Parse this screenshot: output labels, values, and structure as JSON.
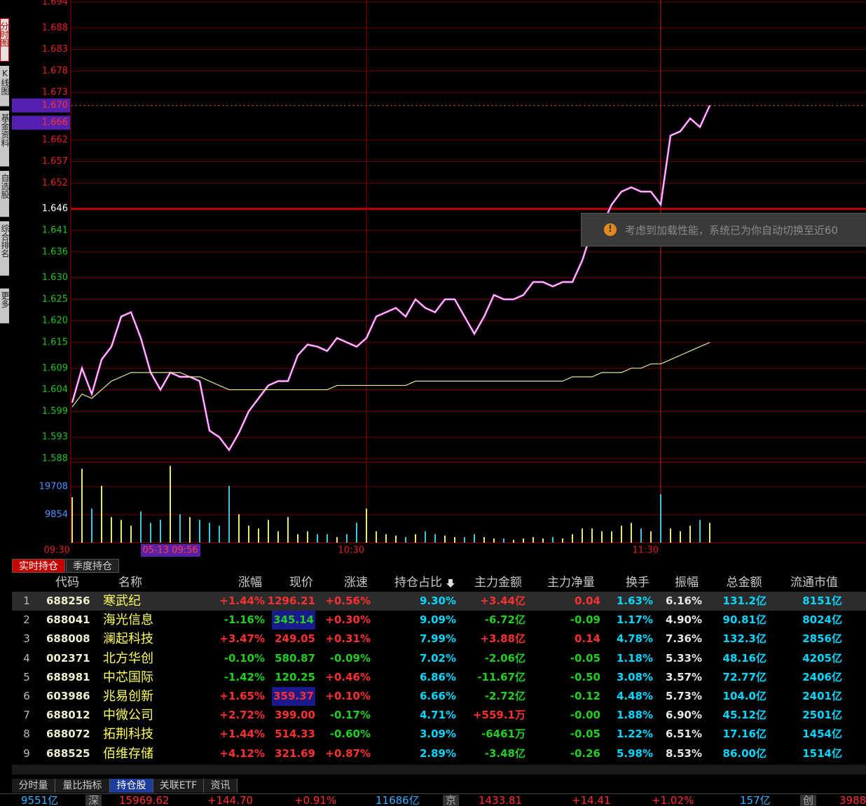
{
  "sidebar_tabs": [
    "分时图",
    "K线图",
    "基金资料",
    "自选股",
    "综合排名",
    "更多"
  ],
  "chart_data": {
    "type": "line",
    "x": [
      "09:30",
      "09:32",
      "09:34",
      "09:36",
      "09:38",
      "09:40",
      "09:42",
      "09:44",
      "09:46",
      "09:48",
      "09:50",
      "09:52",
      "09:54",
      "09:56",
      "09:58",
      "10:00",
      "10:02",
      "10:04",
      "10:06",
      "10:08",
      "10:10",
      "10:12",
      "10:14",
      "10:16",
      "10:18",
      "10:20",
      "10:22",
      "10:24",
      "10:26",
      "10:28",
      "10:30",
      "10:32",
      "10:34",
      "10:36",
      "10:38",
      "10:40",
      "10:42",
      "10:44",
      "10:46",
      "10:48",
      "10:50",
      "10:52",
      "10:54",
      "10:56",
      "10:58",
      "11:00",
      "11:02",
      "11:04",
      "11:06",
      "11:08",
      "11:10",
      "11:12",
      "11:14",
      "11:16",
      "11:18",
      "11:20",
      "11:22",
      "11:24",
      "11:26",
      "11:28",
      "11:30",
      "11:32",
      "11:34",
      "11:36",
      "11:38",
      "11:40"
    ],
    "series": [
      {
        "color": "#ffffff",
        "shadow_color": "#e040e0",
        "values": [
          1.601,
          1.609,
          1.603,
          1.611,
          1.614,
          1.621,
          1.622,
          1.616,
          1.608,
          1.604,
          1.608,
          1.607,
          1.607,
          1.606,
          1.5945,
          1.593,
          1.59,
          1.594,
          1.599,
          1.602,
          1.605,
          1.606,
          1.606,
          1.612,
          1.6145,
          1.614,
          1.613,
          1.616,
          1.615,
          1.614,
          1.616,
          1.621,
          1.622,
          1.623,
          1.621,
          1.625,
          1.623,
          1.622,
          1.625,
          1.625,
          1.621,
          1.617,
          1.621,
          1.626,
          1.625,
          1.625,
          1.626,
          1.629,
          1.629,
          1.628,
          1.629,
          1.629,
          1.634,
          1.641,
          1.642,
          1.647,
          1.65,
          1.651,
          1.65,
          1.65,
          1.647,
          1.663,
          1.664,
          1.667,
          1.665,
          1.67
        ]
      },
      {
        "color": "#e8e890",
        "values": [
          1.6,
          1.603,
          1.602,
          1.604,
          1.606,
          1.607,
          1.608,
          1.608,
          1.608,
          1.608,
          1.608,
          1.608,
          1.607,
          1.607,
          1.606,
          1.605,
          1.604,
          1.604,
          1.604,
          1.604,
          1.604,
          1.604,
          1.604,
          1.604,
          1.604,
          1.604,
          1.604,
          1.605,
          1.605,
          1.605,
          1.605,
          1.605,
          1.605,
          1.605,
          1.605,
          1.606,
          1.606,
          1.606,
          1.606,
          1.606,
          1.606,
          1.606,
          1.606,
          1.606,
          1.606,
          1.606,
          1.606,
          1.606,
          1.606,
          1.606,
          1.606,
          1.607,
          1.607,
          1.607,
          1.608,
          1.608,
          1.608,
          1.609,
          1.609,
          1.61,
          1.61,
          1.611,
          1.612,
          1.613,
          1.614,
          1.615
        ]
      },
      {
        "type": "bar",
        "axis": "y2",
        "colors": {
          "up": "#e8e870",
          "down": "#40c8e0"
        },
        "values": [
          16000,
          26000,
          12000,
          20000,
          9000,
          8000,
          6000,
          11000,
          7000,
          8000,
          27000,
          10000,
          9000,
          8000,
          7000,
          6000,
          20000,
          10000,
          6000,
          5000,
          8000,
          4000,
          9000,
          3000,
          4000,
          3000,
          3000,
          2000,
          3000,
          7000,
          12000,
          4000,
          3000,
          2500,
          2000,
          3000,
          4000,
          3000,
          2500,
          2000,
          2000,
          3000,
          2000,
          1500,
          1500,
          1000,
          1500,
          2000,
          1500,
          2000,
          1500,
          3000,
          5000,
          5000,
          4000,
          4000,
          6000,
          7000,
          5000,
          4000,
          17000,
          5000,
          4000,
          6000,
          8000,
          7000
        ]
      }
    ],
    "ylim": [
      1.588,
      1.694
    ],
    "yticks": [
      1.694,
      1.688,
      1.683,
      1.678,
      1.673,
      1.662,
      1.657,
      1.652,
      1.646,
      1.641,
      1.636,
      {
        "value": 1.63,
        "label": "1.630"
      },
      1.625,
      {
        "value": 1.62,
        "label": "1.620"
      },
      1.615,
      1.609,
      1.604,
      1.599,
      1.593,
      1.588
    ],
    "highlight_ticks": [
      {
        "value": 1.67,
        "label": "1.670"
      },
      1.666
    ],
    "baseline": 1.646,
    "y2lim": [
      0,
      28330
    ],
    "y2ticks": [
      19708,
      9854
    ],
    "xticks": [
      "09:30",
      "10:30",
      "11:30"
    ],
    "grid": true
  },
  "cursor_label": "05-13 09:56",
  "toast": "考虑到加载性能，系统已为你自动切换至近60",
  "holding_tabs": [
    "实时持仓",
    "季度持仓"
  ],
  "table": {
    "headers": [
      "代码",
      "名称",
      "涨幅",
      "现价",
      "涨速",
      "持仓占比",
      "主力金额",
      "主力净量",
      "换手",
      "振幅",
      "总金额",
      "流通市值"
    ],
    "rows": [
      [
        "1",
        "688256",
        "寒武纪",
        "+1.44%",
        "1296.21",
        "+0.56%",
        "9.30%",
        "+3.44亿",
        "0.04",
        "1.63%",
        "6.16%",
        "131.2亿",
        "8151亿"
      ],
      [
        "2",
        "688041",
        "海光信息",
        "-1.16%",
        "345.14",
        "+0.30%",
        "9.09%",
        "-6.72亿",
        "-0.09",
        "1.17%",
        "4.90%",
        "90.81亿",
        "8024亿"
      ],
      [
        "3",
        "688008",
        "澜起科技",
        "+3.47%",
        "249.05",
        "+0.31%",
        "7.99%",
        "+3.88亿",
        "0.14",
        "4.78%",
        "7.36%",
        "132.3亿",
        "2856亿"
      ],
      [
        "4",
        "002371",
        "北方华创",
        "-0.10%",
        "580.87",
        "-0.09%",
        "7.02%",
        "-2.06亿",
        "-0.05",
        "1.18%",
        "5.33%",
        "48.16亿",
        "4205亿"
      ],
      [
        "5",
        "688981",
        "中芯国际",
        "-1.42%",
        "120.25",
        "+0.46%",
        "6.86%",
        "-11.67亿",
        "-0.50",
        "3.08%",
        "3.57%",
        "72.77亿",
        "2406亿"
      ],
      [
        "6",
        "603986",
        "兆易创新",
        "+1.65%",
        "359.37",
        "+0.10%",
        "6.66%",
        "-2.72亿",
        "-0.12",
        "4.48%",
        "5.73%",
        "104.0亿",
        "2401亿"
      ],
      [
        "7",
        "688012",
        "中微公司",
        "+2.72%",
        "399.00",
        "-0.17%",
        "4.71%",
        "+559.1万",
        "-0.00",
        "1.88%",
        "6.90%",
        "45.12亿",
        "2501亿"
      ],
      [
        "8",
        "688072",
        "拓荆科技",
        "+1.44%",
        "514.33",
        "-0.60%",
        "3.09%",
        "-6461万",
        "-0.05",
        "1.22%",
        "6.51%",
        "17.16亿",
        "1454亿"
      ],
      [
        "9",
        "688525",
        "佰维存储",
        "+4.12%",
        "321.69",
        "+0.87%",
        "2.89%",
        "-3.48亿",
        "-0.26",
        "5.98%",
        "8.53%",
        "86.00亿",
        "1514亿"
      ]
    ]
  },
  "bottom_tabs": [
    "分时量",
    "量比指标",
    "持仓股",
    "关联ETF",
    "资讯"
  ],
  "ticker": [
    "9551亿",
    "深",
    "15969.62",
    "+144.70",
    "+0.91%",
    "11686亿",
    "京",
    "1433.81",
    "+14.41",
    "+1.02%",
    "157亿",
    "创",
    "3988"
  ]
}
